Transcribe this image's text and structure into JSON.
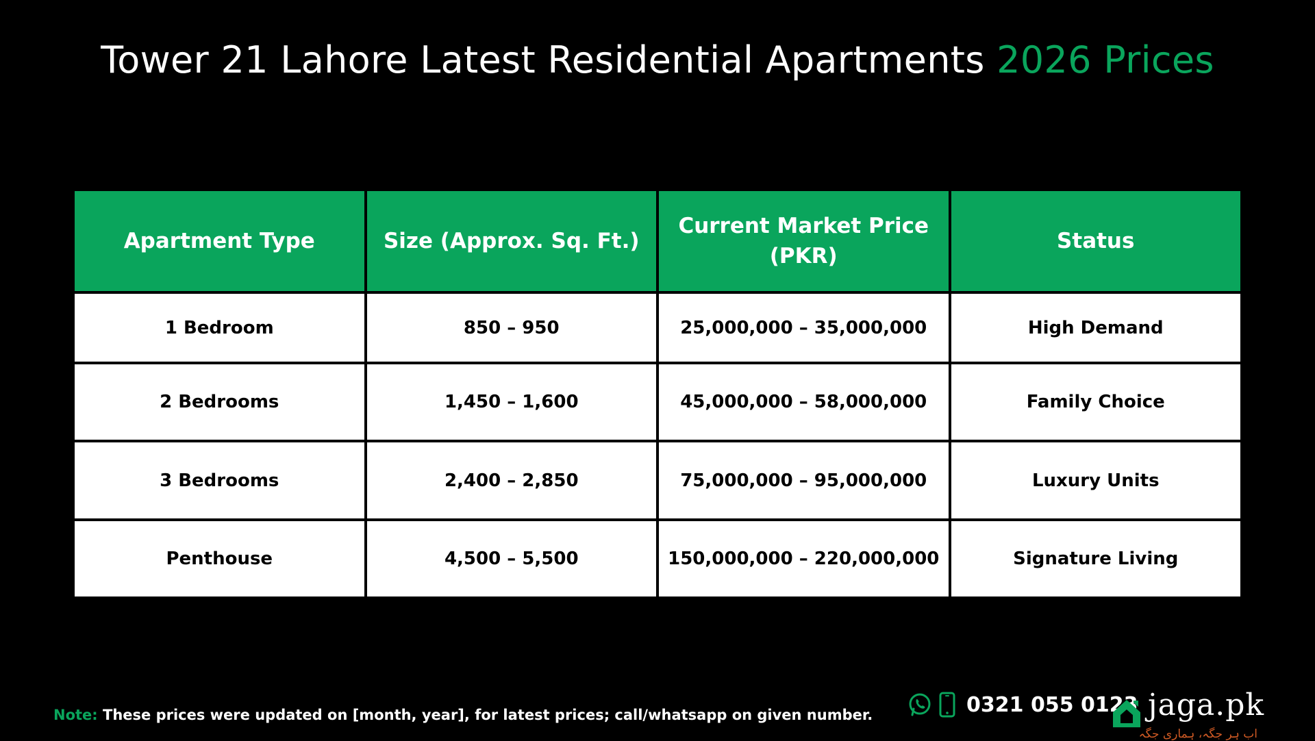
{
  "title": {
    "main": "Tower 21 Lahore Latest Residential Apartments ",
    "accent": "2026 Prices"
  },
  "table": {
    "headers": [
      "Apartment Type",
      "Size (Approx. Sq. Ft.)",
      "Current Market Price (PKR)",
      "Status"
    ],
    "rows": [
      [
        "1 Bedroom",
        "850 – 950",
        "25,000,000 – 35,000,000",
        "High Demand"
      ],
      [
        "2 Bedrooms",
        "1,450 – 1,600",
        "45,000,000 – 58,000,000",
        "Family Choice"
      ],
      [
        "3 Bedrooms",
        "2,400 – 2,850",
        "75,000,000 – 95,000,000",
        "Luxury Units"
      ],
      [
        "Penthouse",
        "4,500 – 5,500",
        "150,000,000 – 220,000,000",
        "Signature Living"
      ]
    ]
  },
  "note": {
    "label": "Note:",
    "text": " These prices were updated on [month, year], for latest prices; call/whatsapp on given number."
  },
  "contact": {
    "phone": "0321 055 0123",
    "icons": [
      "whatsapp-icon",
      "mobile-phone-icon"
    ]
  },
  "brand": {
    "name": "jaga.pk",
    "tagline": "اب ہر جگہ، ہماری جگہ",
    "icon": "house-logo-icon"
  },
  "colors": {
    "background": "#000000",
    "accent_green": "#0aa55c",
    "cell_background": "#ffffff",
    "tagline_orange": "#d05a24"
  }
}
